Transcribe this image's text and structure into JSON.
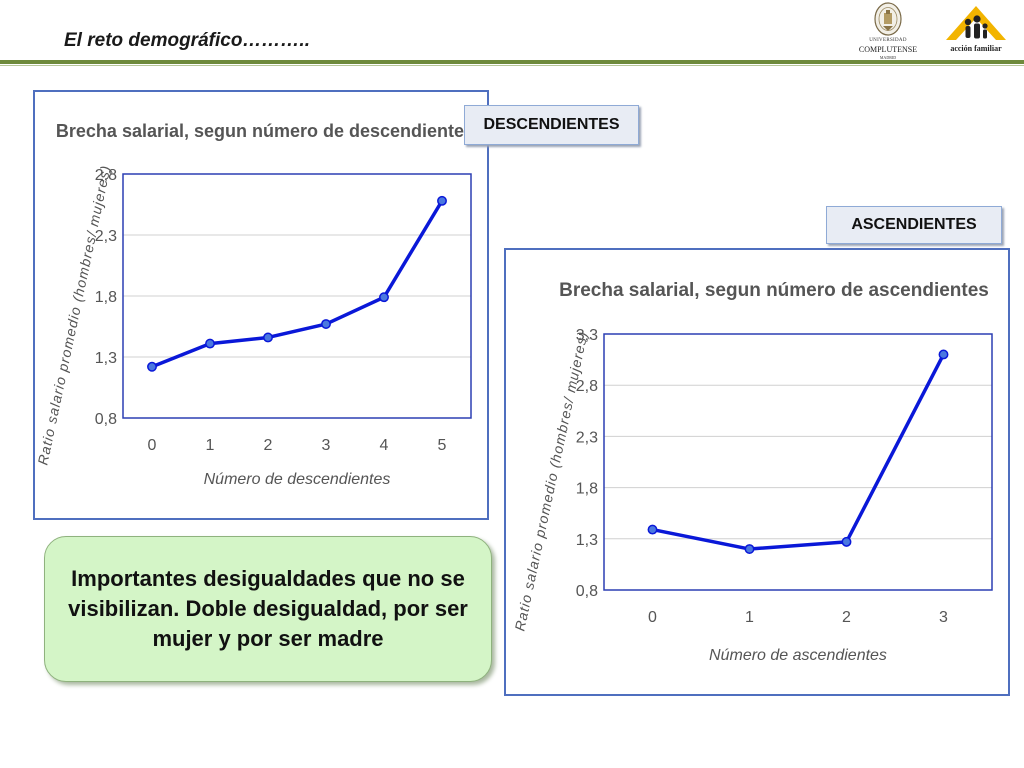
{
  "header": {
    "title": "El reto demográfico………..",
    "logos": [
      {
        "name": "universidad-complutense-logo",
        "lines": [
          "UNIVERSIDAD",
          "COMPLUTENSE",
          "MADRID"
        ]
      },
      {
        "name": "accion-familiar-logo",
        "text": "acción familiar"
      }
    ],
    "rule_color": "#6e8a3c"
  },
  "labels": {
    "descendientes": "DESCENDIENTES",
    "ascendientes": "ASCENDIENTES"
  },
  "callout": {
    "text": "Importantes desigualdades que no se visibilizan. Doble desigualdad, por ser mujer y por ser madre",
    "color": "#d4f5c7"
  },
  "colors": {
    "line": "#0a18d8",
    "frame": "#4f6fbf",
    "grid": "#d0d0d0"
  },
  "chart_data": [
    {
      "type": "line",
      "title": "Brecha salarial, segun número de descendientes",
      "xlabel": "Número de descendientes",
      "ylabel": "Ratio salario promedio (hombres/ mujeres)",
      "categories": [
        "0",
        "1",
        "2",
        "3",
        "4",
        "5"
      ],
      "yticks": [
        "0,8",
        "1,3",
        "1,8",
        "2,3",
        "2,8"
      ],
      "ylim": [
        0.8,
        2.8
      ],
      "grid": true,
      "series": [
        {
          "values": [
            1.22,
            1.41,
            1.46,
            1.57,
            1.79,
            2.58
          ]
        }
      ]
    },
    {
      "type": "line",
      "title": "Brecha salarial, segun número de ascendientes",
      "xlabel": "Número de ascendientes",
      "ylabel": "Ratio salario promedio (hombres/ mujeres)",
      "categories": [
        "0",
        "1",
        "2",
        "3"
      ],
      "yticks": [
        "0,8",
        "1,3",
        "1,8",
        "2,3",
        "2,8",
        "3,3"
      ],
      "ylim": [
        0.8,
        3.3
      ],
      "grid": true,
      "series": [
        {
          "values": [
            1.39,
            1.2,
            1.27,
            3.1
          ]
        }
      ]
    }
  ]
}
